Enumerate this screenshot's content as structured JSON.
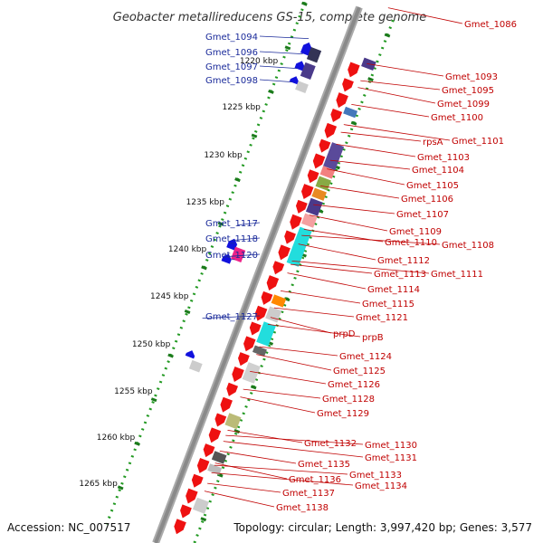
{
  "title": "Geobacter metallireducens GS-15, complete genome",
  "accession": "Accession: NC_007517",
  "topology": "Topology: circular; Length: 3,997,420 bp; Genes: 3,577",
  "colors": {
    "forward_gene": "#ee1111",
    "reverse_gene": "#1111dd",
    "backbone": "#8a8a8a",
    "tick_dots": "#229922",
    "right_label": "#c00000",
    "left_label": "#1a2a9a"
  },
  "kbp_labels": [
    "1220 kbp",
    "1225 kbp",
    "1230 kbp",
    "1235 kbp",
    "1240 kbp",
    "1245 kbp",
    "1250 kbp",
    "1255 kbp",
    "1260 kbp",
    "1265 kbp"
  ],
  "left_labels": [
    "Gmet_1094",
    "Gmet_1096",
    "Gmet_1097",
    "Gmet_1098",
    "Gmet_1117",
    "Gmet_1118",
    "Gmet_1120",
    "Gmet_1127"
  ],
  "right_labels": [
    "Gmet_1086",
    "Gmet_1093",
    "Gmet_1095",
    "Gmet_1099",
    "Gmet_1100",
    "rpsA",
    "Gmet_1101",
    "Gmet_1103",
    "Gmet_1104",
    "Gmet_1105",
    "Gmet_1106",
    "Gmet_1107",
    "Gmet_1109",
    "Gmet_1110",
    "Gmet_1108",
    "Gmet_1112",
    "Gmet_1111",
    "Gmet_1113",
    "Gmet_1114",
    "Gmet_1115",
    "Gmet_1121",
    "prpD",
    "prpB",
    "Gmet_1124",
    "Gmet_1125",
    "Gmet_1126",
    "Gmet_1128",
    "Gmet_1129",
    "Gmet_1132",
    "Gmet_1130",
    "Gmet_1131",
    "Gmet_1135",
    "Gmet_1133",
    "Gmet_1136",
    "Gmet_1134",
    "Gmet_1137",
    "Gmet_1138"
  ]
}
